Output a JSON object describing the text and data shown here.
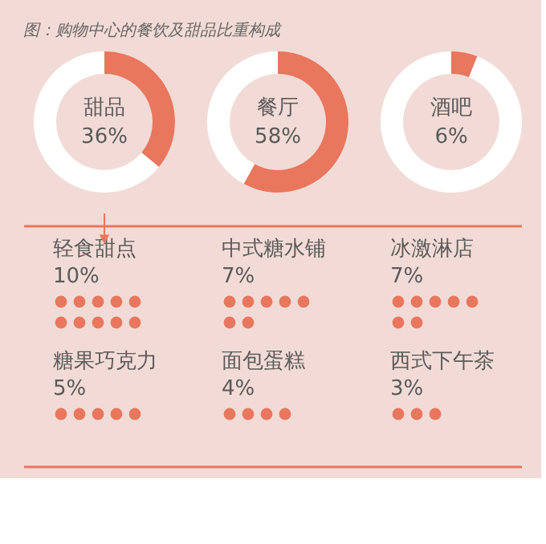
{
  "chart_data": [
    {
      "type": "donut",
      "title": "图：购物中心的餐饮及甜品比重构成",
      "categories": [
        "甜品",
        null
      ],
      "values": [
        36,
        64
      ],
      "colors": [
        "#e8775d",
        "#ffffff"
      ],
      "value_labels": [
        "36%",
        null
      ]
    },
    {
      "type": "donut",
      "categories": [
        "餐厅",
        null
      ],
      "values": [
        58,
        42
      ],
      "colors": [
        "#e8775d",
        "#ffffff"
      ],
      "value_labels": [
        "58%",
        null
      ]
    },
    {
      "type": "donut",
      "categories": [
        "酒吧",
        null
      ],
      "values": [
        6,
        94
      ],
      "colors": [
        "#e8775d",
        "#ffffff"
      ],
      "value_labels": [
        "6%",
        null
      ]
    },
    {
      "type": "other",
      "categories": [
        "轻食甜点",
        "中式糖水铺",
        "冰激淋店",
        "糖果巧克力",
        "面包蛋糕",
        "西式下午茶"
      ],
      "values": [
        10,
        7,
        7,
        5,
        4,
        3
      ],
      "value_labels": [
        "10%",
        "7%",
        "7%",
        "5%",
        "4%",
        "3%"
      ],
      "color": "#e8775d"
    }
  ]
}
